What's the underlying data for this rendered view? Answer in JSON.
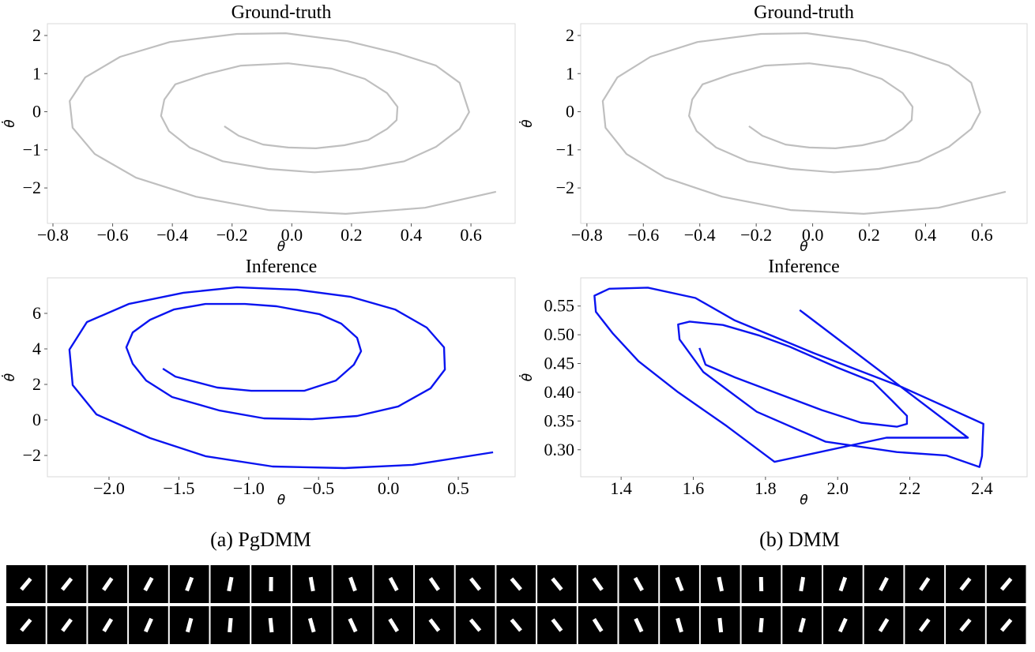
{
  "chart_data": [
    {
      "type": "line",
      "title": "Ground-truth",
      "xlabel": "θ",
      "ylabel": "θ̇",
      "color": "#bfbfbf",
      "x": [
        -0.226,
        -0.178,
        -0.096,
        -0.012,
        0.081,
        0.176,
        0.256,
        0.319,
        0.351,
        0.354,
        0.319,
        0.245,
        0.134,
        -0.012,
        -0.17,
        -0.289,
        -0.39,
        -0.427,
        -0.438,
        -0.411,
        -0.342,
        -0.231,
        -0.078,
        0.076,
        0.234,
        0.377,
        0.483,
        0.562,
        0.594,
        0.562,
        0.483,
        0.351,
        0.187,
        -0.02,
        -0.184,
        -0.408,
        -0.575,
        -0.692,
        -0.744,
        -0.734,
        -0.66,
        -0.522,
        -0.321,
        -0.078,
        0.181,
        0.446,
        0.684
      ],
      "values": [
        -0.38,
        -0.63,
        -0.86,
        -0.94,
        -0.96,
        -0.88,
        -0.74,
        -0.45,
        -0.22,
        0.13,
        0.49,
        0.86,
        1.13,
        1.27,
        1.21,
        0.98,
        0.72,
        0.32,
        -0.11,
        -0.51,
        -0.94,
        -1.3,
        -1.5,
        -1.59,
        -1.5,
        -1.3,
        -0.92,
        -0.45,
        -0.01,
        0.76,
        1.21,
        1.54,
        1.85,
        2.06,
        2.04,
        1.83,
        1.44,
        0.9,
        0.28,
        -0.42,
        -1.11,
        -1.73,
        -2.23,
        -2.58,
        -2.68,
        -2.52,
        -2.1
      ],
      "xlim": [
        -0.8185,
        0.748
      ],
      "ylim": [
        -2.93,
        2.31
      ],
      "xticks": [
        {
          "value": -0.8,
          "label": "−0.8"
        },
        {
          "value": -0.6,
          "label": "−0.6"
        },
        {
          "value": -0.4,
          "label": "−0.4"
        },
        {
          "value": -0.2,
          "label": "−0.2"
        },
        {
          "value": 0,
          "label": "0.0"
        },
        0.2,
        0.4,
        0.6
      ],
      "yticks": [
        {
          "value": -2,
          "label": "−2"
        },
        {
          "value": -1,
          "label": "−1"
        },
        0,
        1,
        2
      ]
    },
    {
      "type": "line",
      "title": "Ground-truth",
      "xlabel": "θ",
      "ylabel": "θ̇",
      "color": "#bfbfbf",
      "x": [
        -0.226,
        -0.178,
        -0.096,
        -0.012,
        0.081,
        0.176,
        0.256,
        0.319,
        0.351,
        0.354,
        0.319,
        0.245,
        0.134,
        -0.012,
        -0.17,
        -0.289,
        -0.39,
        -0.427,
        -0.438,
        -0.411,
        -0.342,
        -0.231,
        -0.078,
        0.076,
        0.234,
        0.377,
        0.483,
        0.562,
        0.594,
        0.562,
        0.483,
        0.351,
        0.187,
        -0.02,
        -0.184,
        -0.408,
        -0.575,
        -0.692,
        -0.744,
        -0.734,
        -0.66,
        -0.522,
        -0.321,
        -0.078,
        0.181,
        0.446,
        0.684
      ],
      "values": [
        -0.38,
        -0.63,
        -0.86,
        -0.94,
        -0.96,
        -0.88,
        -0.74,
        -0.45,
        -0.22,
        0.13,
        0.49,
        0.86,
        1.13,
        1.27,
        1.21,
        0.98,
        0.72,
        0.32,
        -0.11,
        -0.51,
        -0.94,
        -1.3,
        -1.5,
        -1.59,
        -1.5,
        -1.3,
        -0.92,
        -0.45,
        -0.01,
        0.76,
        1.21,
        1.54,
        1.85,
        2.06,
        2.04,
        1.83,
        1.44,
        0.9,
        0.28,
        -0.42,
        -1.11,
        -1.73,
        -2.23,
        -2.58,
        -2.68,
        -2.52,
        -2.1
      ],
      "xlim": [
        -0.822,
        0.76
      ],
      "ylim": [
        -2.93,
        2.31
      ],
      "xticks": [
        {
          "value": -0.8,
          "label": "−0.8"
        },
        {
          "value": -0.6,
          "label": "−0.6"
        },
        {
          "value": -0.4,
          "label": "−0.4"
        },
        {
          "value": -0.2,
          "label": "−0.2"
        },
        {
          "value": 0,
          "label": "0.0"
        },
        0.2,
        0.4,
        0.6
      ],
      "yticks": [
        {
          "value": -2,
          "label": "−2"
        },
        {
          "value": -1,
          "label": "−1"
        },
        0,
        1,
        2
      ]
    },
    {
      "type": "line",
      "title": "Inference",
      "xlabel": "θ",
      "ylabel": "θ̇",
      "color": "#0a14f0",
      "x": [
        -1.615,
        -1.525,
        -1.225,
        -0.982,
        -0.603,
        -0.376,
        -0.247,
        -0.196,
        -0.224,
        -0.337,
        -0.495,
        -0.801,
        -1.027,
        -1.31,
        -1.536,
        -1.706,
        -1.83,
        -1.876,
        -1.83,
        -1.734,
        -1.548,
        -1.208,
        -0.891,
        -0.546,
        -0.224,
        0.07,
        0.302,
        0.404,
        0.398,
        0.274,
        0.048,
        -0.269,
        -0.654,
        -1.084,
        -1.468,
        -1.859,
        -2.158,
        -2.283,
        -2.26,
        -2.09,
        -1.706,
        -1.31,
        -0.829,
        -0.314,
        0.172,
        0.749
      ],
      "values": [
        2.89,
        2.44,
        1.82,
        1.64,
        1.64,
        2.22,
        3.11,
        3.87,
        4.62,
        5.42,
        5.96,
        6.4,
        6.53,
        6.53,
        6.22,
        5.64,
        4.93,
        4.09,
        3.16,
        2.22,
        1.29,
        0.53,
        0.09,
        0.04,
        0.22,
        0.76,
        1.78,
        2.84,
        4.09,
        5.2,
        6.22,
        6.93,
        7.33,
        7.47,
        7.16,
        6.53,
        5.51,
        3.96,
        1.96,
        0.31,
        -1.02,
        -2.04,
        -2.62,
        -2.71,
        -2.53,
        -1.82
      ],
      "xlim": [
        -2.441,
        0.907
      ],
      "ylim": [
        -3.2,
        8.0
      ],
      "xticks": [
        {
          "value": -2,
          "label": "−2.0"
        },
        {
          "value": -1.5,
          "label": "−1.5"
        },
        {
          "value": -1,
          "label": "−1.0"
        },
        {
          "value": -0.5,
          "label": "−0.5"
        },
        {
          "value": 0,
          "label": "0.0"
        },
        0.5
      ],
      "yticks": [
        {
          "value": -2,
          "label": "−2"
        },
        0,
        2,
        4,
        6
      ]
    },
    {
      "type": "line",
      "title": "Inference",
      "xlabel": "θ",
      "ylabel": "θ̇",
      "color": "#0a14f0",
      "x": [
        1.617,
        1.634,
        1.715,
        1.846,
        1.956,
        2.065,
        2.164,
        2.192,
        2.192,
        2.153,
        2.098,
        1.999,
        1.868,
        1.781,
        1.682,
        1.59,
        1.558,
        1.562,
        1.628,
        1.776,
        1.967,
        2.164,
        2.302,
        2.393,
        2.4,
        2.404,
        2.175,
        1.934,
        1.715,
        1.606,
        1.474,
        1.367,
        1.326,
        1.33,
        1.376,
        1.448,
        1.558,
        1.693,
        1.825,
        2.135,
        2.361,
        1.895
      ],
      "values": [
        0.477,
        0.448,
        0.426,
        0.395,
        0.369,
        0.347,
        0.34,
        0.345,
        0.359,
        0.384,
        0.418,
        0.443,
        0.479,
        0.499,
        0.517,
        0.523,
        0.518,
        0.492,
        0.435,
        0.366,
        0.314,
        0.296,
        0.29,
        0.27,
        0.289,
        0.345,
        0.41,
        0.468,
        0.525,
        0.564,
        0.582,
        0.58,
        0.568,
        0.54,
        0.503,
        0.454,
        0.4,
        0.341,
        0.279,
        0.321,
        0.321,
        0.543
      ],
      "xlim": [
        1.288,
        2.525
      ],
      "ylim": [
        0.253,
        0.599
      ],
      "xticks": [
        1.4,
        1.6,
        1.8,
        {
          "value": 2,
          "label": "2.0"
        },
        2.2,
        2.4
      ],
      "yticks": [
        {
          "value": 0.3,
          "label": "0.30"
        },
        0.35,
        {
          "value": 0.4,
          "label": "0.40"
        },
        0.45,
        {
          "value": 0.5,
          "label": "0.50"
        },
        0.55
      ]
    }
  ],
  "captions": [
    "(a) PgDMM",
    "(b) DMM"
  ]
}
